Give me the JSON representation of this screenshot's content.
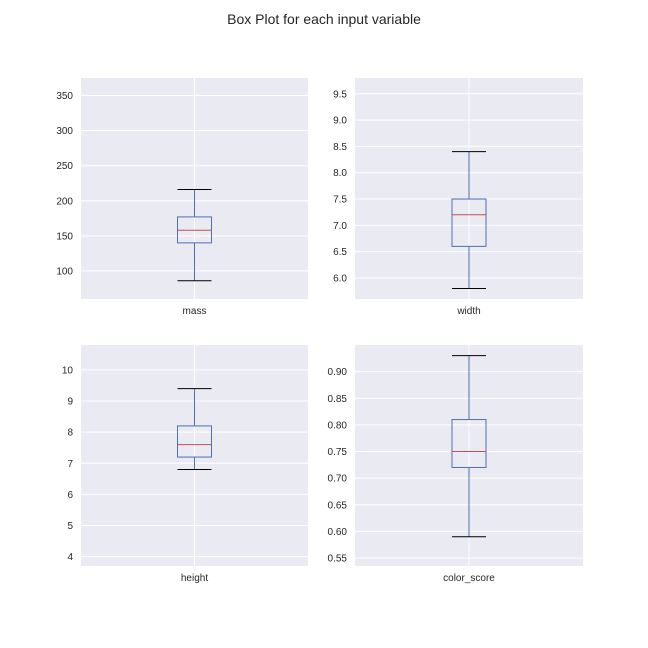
{
  "figure": {
    "title": "Box Plot for each input variable"
  },
  "colors": {
    "plot_bg": "#eaeaf2",
    "grid": "#ffffff",
    "box": "#4c72b0",
    "median": "#c44e52",
    "cap": "#000000"
  },
  "chart_data": [
    {
      "type": "box",
      "category": "mass",
      "ylim": [
        60,
        375
      ],
      "yticks": [
        100,
        150,
        200,
        250,
        300,
        350
      ],
      "ytick_labels": [
        "100",
        "150",
        "200",
        "250",
        "300",
        "350"
      ],
      "whisker_low": 86,
      "q1": 140,
      "median": 158,
      "q3": 177,
      "whisker_high": 216,
      "grid": true
    },
    {
      "type": "box",
      "category": "width",
      "ylim": [
        5.6,
        9.8
      ],
      "yticks": [
        6.0,
        6.5,
        7.0,
        7.5,
        8.0,
        8.5,
        9.0,
        9.5
      ],
      "ytick_labels": [
        "6.0",
        "6.5",
        "7.0",
        "7.5",
        "8.0",
        "8.5",
        "9.0",
        "9.5"
      ],
      "whisker_low": 5.8,
      "q1": 6.6,
      "median": 7.2,
      "q3": 7.5,
      "whisker_high": 8.4,
      "grid": true
    },
    {
      "type": "box",
      "category": "height",
      "ylim": [
        3.7,
        10.8
      ],
      "yticks": [
        4,
        5,
        6,
        7,
        8,
        9,
        10
      ],
      "ytick_labels": [
        "4",
        "5",
        "6",
        "7",
        "8",
        "9",
        "10"
      ],
      "whisker_low": 6.8,
      "q1": 7.2,
      "median": 7.6,
      "q3": 8.2,
      "whisker_high": 9.4,
      "grid": true
    },
    {
      "type": "box",
      "category": "color_score",
      "ylim": [
        0.535,
        0.95
      ],
      "yticks": [
        0.55,
        0.6,
        0.65,
        0.7,
        0.75,
        0.8,
        0.85,
        0.9
      ],
      "ytick_labels": [
        "0.55",
        "0.60",
        "0.65",
        "0.70",
        "0.75",
        "0.80",
        "0.85",
        "0.90"
      ],
      "whisker_low": 0.59,
      "q1": 0.72,
      "median": 0.75,
      "q3": 0.81,
      "whisker_high": 0.93,
      "grid": true
    }
  ]
}
